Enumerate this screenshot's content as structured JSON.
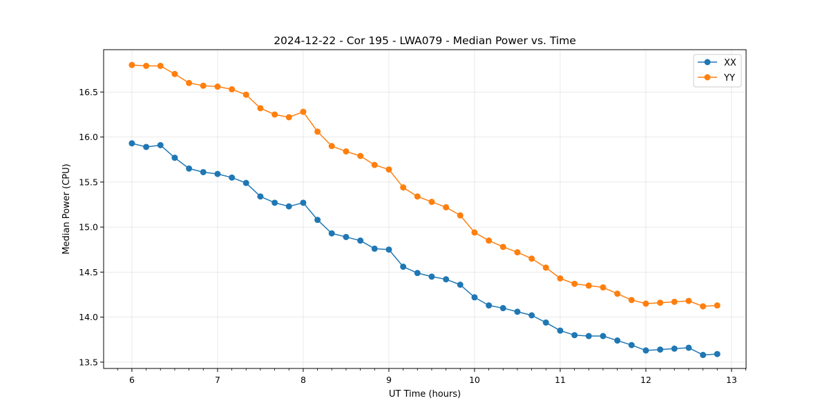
{
  "chart_data": {
    "type": "line",
    "title": "2024-12-22 - Cor 195 - LWA079 - Median Power vs. Time",
    "xlabel": "UT Time (hours)",
    "ylabel": "Median Power (CPU)",
    "xlim": [
      5.67,
      13.17
    ],
    "ylim": [
      13.43,
      16.97
    ],
    "x_ticks": [
      6,
      7,
      8,
      9,
      10,
      11,
      12,
      13
    ],
    "x_tick_labels": [
      "6",
      "7",
      "8",
      "9",
      "10",
      "11",
      "12",
      "13"
    ],
    "y_ticks": [
      13.5,
      14.0,
      14.5,
      15.0,
      15.5,
      16.0,
      16.5
    ],
    "y_tick_labels": [
      "13.5",
      "14.0",
      "14.5",
      "15.0",
      "15.5",
      "16.0",
      "16.5"
    ],
    "grid": true,
    "legend_position": "top-right",
    "x": [
      6.0,
      6.167,
      6.333,
      6.5,
      6.667,
      6.833,
      7.0,
      7.167,
      7.333,
      7.5,
      7.667,
      7.833,
      8.0,
      8.167,
      8.333,
      8.5,
      8.667,
      8.833,
      9.0,
      9.167,
      9.333,
      9.5,
      9.667,
      9.833,
      10.0,
      10.167,
      10.333,
      10.5,
      10.667,
      10.833,
      11.0,
      11.167,
      11.333,
      11.5,
      11.667,
      11.833,
      12.0,
      12.167,
      12.333,
      12.5,
      12.667,
      12.833
    ],
    "series": [
      {
        "name": "XX",
        "color": "#1f77b4",
        "values": [
          15.93,
          15.89,
          15.91,
          15.77,
          15.65,
          15.61,
          15.59,
          15.55,
          15.49,
          15.34,
          15.27,
          15.23,
          15.27,
          15.08,
          14.93,
          14.89,
          14.85,
          14.76,
          14.75,
          14.56,
          14.49,
          14.45,
          14.42,
          14.36,
          14.22,
          14.13,
          14.1,
          14.06,
          14.02,
          13.94,
          13.85,
          13.8,
          13.79,
          13.79,
          13.74,
          13.69,
          13.63,
          13.64,
          13.65,
          13.66,
          13.58,
          13.59
        ]
      },
      {
        "name": "YY",
        "color": "#ff7f0e",
        "values": [
          16.8,
          16.79,
          16.79,
          16.7,
          16.6,
          16.57,
          16.56,
          16.53,
          16.47,
          16.32,
          16.25,
          16.22,
          16.28,
          16.06,
          15.9,
          15.84,
          15.79,
          15.69,
          15.64,
          15.44,
          15.34,
          15.28,
          15.22,
          15.13,
          14.94,
          14.85,
          14.78,
          14.72,
          14.65,
          14.55,
          14.43,
          14.37,
          14.35,
          14.33,
          14.26,
          14.19,
          14.15,
          14.16,
          14.17,
          14.18,
          14.12,
          14.13
        ]
      }
    ]
  }
}
